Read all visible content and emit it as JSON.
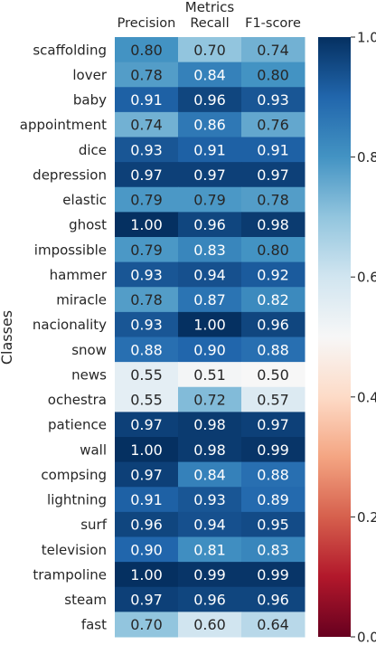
{
  "chart_data": {
    "type": "heatmap",
    "title": "Metrics",
    "xlabel": "Metrics",
    "ylabel": "Classes",
    "columns": [
      "Precision",
      "Recall",
      "F1-score"
    ],
    "rows": [
      "scaffolding",
      "lover",
      "baby",
      "appointment",
      "dice",
      "depression",
      "elastic",
      "ghost",
      "impossible",
      "hammer",
      "miracle",
      "nacionality",
      "snow",
      "news",
      "ochestra",
      "patience",
      "wall",
      "compsing",
      "lightning",
      "surf",
      "television",
      "trampoline",
      "steam",
      "fast"
    ],
    "values": [
      [
        0.8,
        0.7,
        0.74
      ],
      [
        0.78,
        0.84,
        0.8
      ],
      [
        0.91,
        0.96,
        0.93
      ],
      [
        0.74,
        0.86,
        0.76
      ],
      [
        0.93,
        0.91,
        0.91
      ],
      [
        0.97,
        0.97,
        0.97
      ],
      [
        0.79,
        0.79,
        0.78
      ],
      [
        1.0,
        0.96,
        0.98
      ],
      [
        0.79,
        0.83,
        0.8
      ],
      [
        0.93,
        0.94,
        0.92
      ],
      [
        0.78,
        0.87,
        0.82
      ],
      [
        0.93,
        1.0,
        0.96
      ],
      [
        0.88,
        0.9,
        0.88
      ],
      [
        0.55,
        0.51,
        0.5
      ],
      [
        0.55,
        0.72,
        0.57
      ],
      [
        0.97,
        0.98,
        0.97
      ],
      [
        1.0,
        0.98,
        0.99
      ],
      [
        0.97,
        0.84,
        0.88
      ],
      [
        0.91,
        0.93,
        0.89
      ],
      [
        0.96,
        0.94,
        0.95
      ],
      [
        0.9,
        0.81,
        0.83
      ],
      [
        1.0,
        0.99,
        0.99
      ],
      [
        0.97,
        0.96,
        0.96
      ],
      [
        0.7,
        0.6,
        0.64
      ]
    ],
    "value_labels": [
      [
        "0.80",
        "0.70",
        "0.74"
      ],
      [
        "0.78",
        "0.84",
        "0.80"
      ],
      [
        "0.91",
        "0.96",
        "0.93"
      ],
      [
        "0.74",
        "0.86",
        "0.76"
      ],
      [
        "0.93",
        "0.91",
        "0.91"
      ],
      [
        "0.97",
        "0.97",
        "0.97"
      ],
      [
        "0.79",
        "0.79",
        "0.78"
      ],
      [
        "1.00",
        "0.96",
        "0.98"
      ],
      [
        "0.79",
        "0.83",
        "0.80"
      ],
      [
        "0.93",
        "0.94",
        "0.92"
      ],
      [
        "0.78",
        "0.87",
        "0.82"
      ],
      [
        "0.93",
        "1.00",
        "0.96"
      ],
      [
        "0.88",
        "0.90",
        "0.88"
      ],
      [
        "0.55",
        "0.51",
        "0.50"
      ],
      [
        "0.55",
        "0.72",
        "0.57"
      ],
      [
        "0.97",
        "0.98",
        "0.97"
      ],
      [
        "1.00",
        "0.98",
        "0.99"
      ],
      [
        "0.97",
        "0.84",
        "0.88"
      ],
      [
        "0.91",
        "0.93",
        "0.89"
      ],
      [
        "0.96",
        "0.94",
        "0.95"
      ],
      [
        "0.90",
        "0.81",
        "0.83"
      ],
      [
        "1.00",
        "0.99",
        "0.99"
      ],
      [
        "0.97",
        "0.96",
        "0.96"
      ],
      [
        "0.70",
        "0.60",
        "0.64"
      ]
    ],
    "colormap": "RdBu",
    "vmin": 0.0,
    "vmax": 1.0,
    "colorbar_ticks": [
      0.0,
      0.2,
      0.4,
      0.6,
      0.8,
      1.0
    ],
    "colorbar_tick_labels": [
      "0.0",
      "0.2",
      "0.4",
      "0.6",
      "0.8",
      "1.0"
    ],
    "colormap_stops": [
      "#67001f",
      "#b2182b",
      "#d6604d",
      "#f4a582",
      "#fddbc7",
      "#f7f7f7",
      "#d1e5f0",
      "#92c5de",
      "#4393c3",
      "#2166ac",
      "#053061"
    ],
    "grid": false,
    "colorbar_position": "right"
  }
}
